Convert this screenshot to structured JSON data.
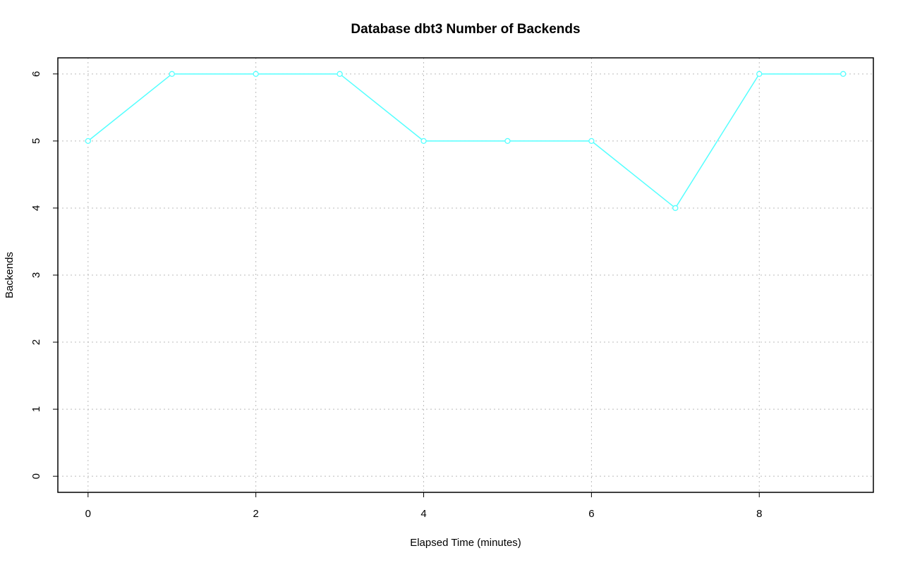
{
  "chart_data": {
    "type": "line",
    "title": "Database dbt3 Number of Backends",
    "xlabel": "Elapsed Time (minutes)",
    "ylabel": "Backends",
    "x": [
      0,
      1,
      2,
      3,
      4,
      5,
      6,
      7,
      8,
      9
    ],
    "series": [
      {
        "name": "Backends",
        "color": "#55ffff",
        "values": [
          5,
          6,
          6,
          6,
          5,
          5,
          5,
          4,
          6,
          6
        ]
      }
    ],
    "xlim": [
      -0.36,
      9.36
    ],
    "xticks": [
      0,
      2,
      4,
      6,
      8
    ],
    "ylim": [
      -0.24,
      6.24
    ],
    "yticks": [
      0,
      1,
      2,
      3,
      4,
      5,
      6
    ],
    "grid": true
  }
}
